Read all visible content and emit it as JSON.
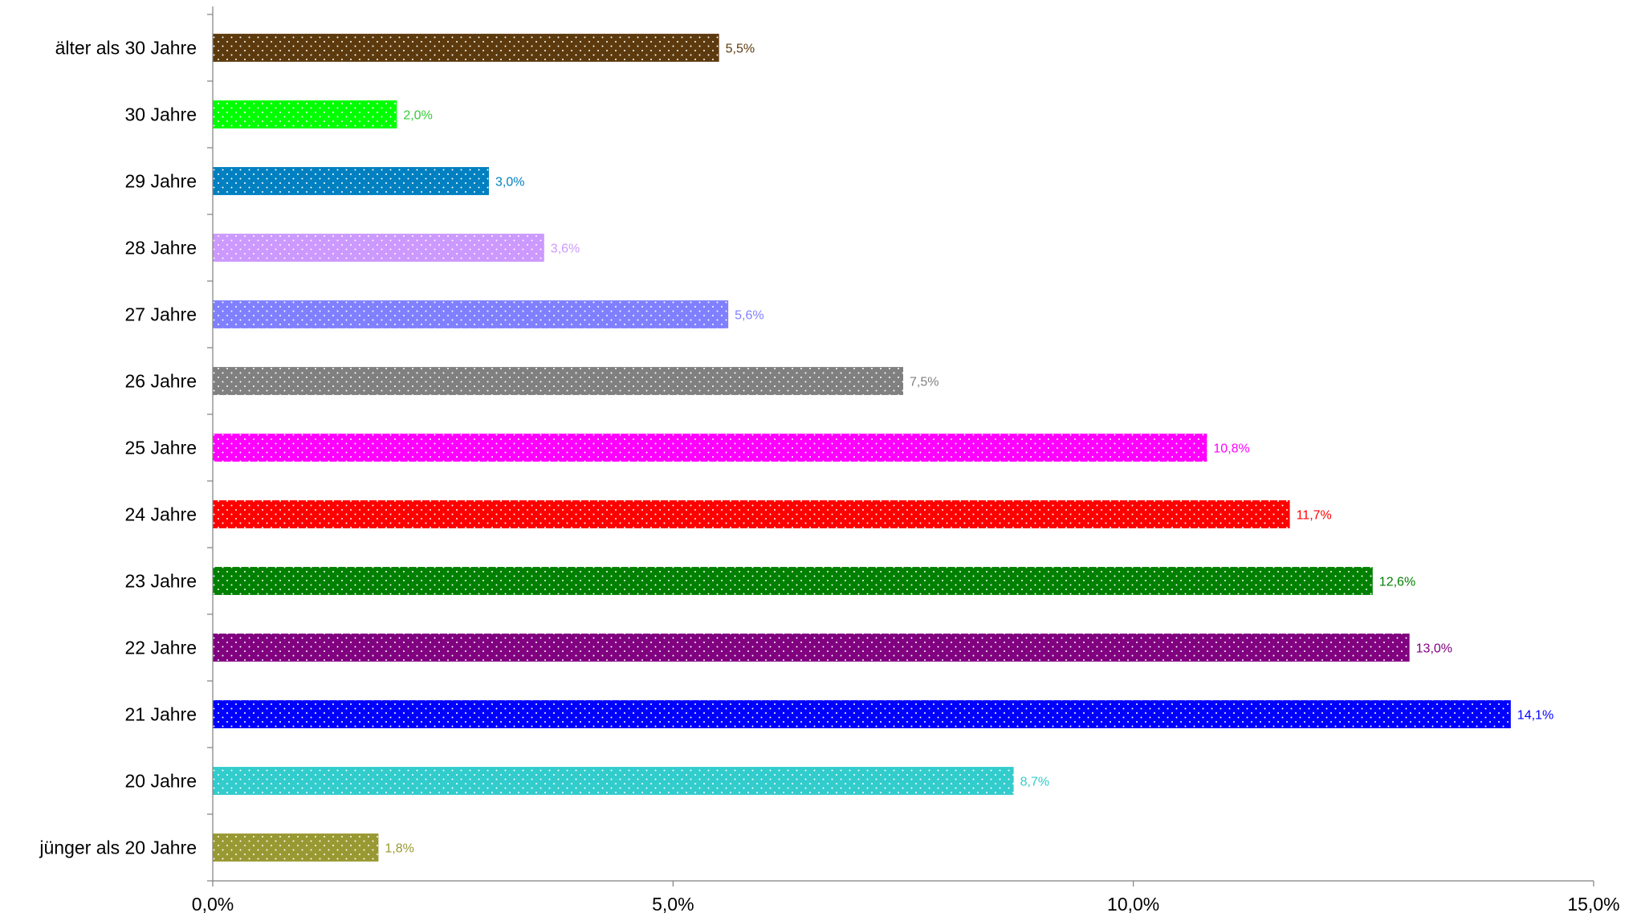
{
  "chart_data": {
    "type": "bar",
    "orientation": "horizontal",
    "categories": [
      "älter als 30 Jahre",
      "30 Jahre",
      "29 Jahre",
      "28 Jahre",
      "27 Jahre",
      "26 Jahre",
      "25 Jahre",
      "24 Jahre",
      "23 Jahre",
      "22 Jahre",
      "21 Jahre",
      "20 Jahre",
      "jünger als 20 Jahre"
    ],
    "values": [
      5.5,
      2.0,
      3.0,
      3.6,
      5.6,
      7.5,
      10.8,
      11.7,
      12.6,
      13.0,
      14.1,
      8.7,
      1.8
    ],
    "value_labels": [
      "5,5%",
      "2,0%",
      "3,0%",
      "3,6%",
      "5,6%",
      "7,5%",
      "10,8%",
      "11,7%",
      "12,6%",
      "13,0%",
      "14,1%",
      "8,7%",
      "1,8%"
    ],
    "colors": [
      "#5C3A0E",
      "#00FF00",
      "#0080C0",
      "#CC99FF",
      "#8080FF",
      "#808080",
      "#FF00FF",
      "#FF0000",
      "#008000",
      "#800080",
      "#0000FF",
      "#33CCCC",
      "#999933"
    ],
    "label_colors": [
      "#5C3A0E",
      "#33CC33",
      "#0080C0",
      "#CC99FF",
      "#8080FF",
      "#808080",
      "#FF00FF",
      "#FF0000",
      "#008000",
      "#800080",
      "#0000FF",
      "#33CCCC",
      "#999933"
    ],
    "xlim": [
      0,
      15
    ],
    "xticks": [
      0,
      5,
      10,
      15
    ],
    "xtick_labels": [
      "0,0%",
      "5,0%",
      "10,0%",
      "15,0%"
    ],
    "pattern": "dotted",
    "grid": false,
    "legend": false,
    "title": "",
    "xlabel": "",
    "ylabel": ""
  }
}
